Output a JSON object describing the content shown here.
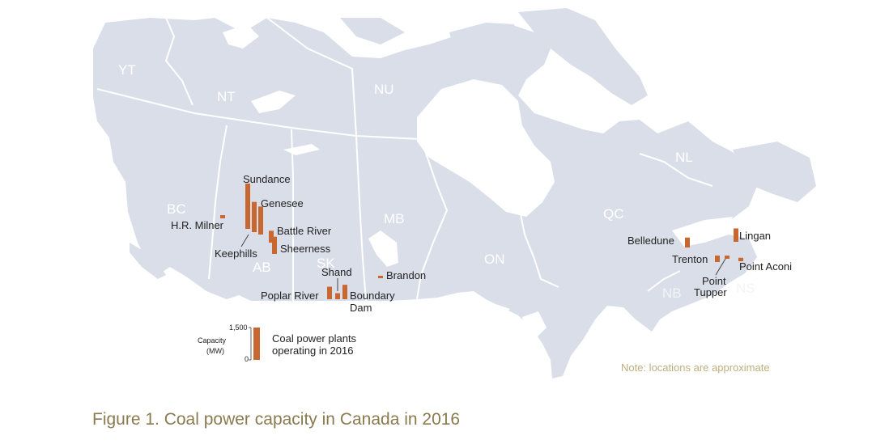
{
  "colors": {
    "land": "#d9dee8",
    "border": "#ffffff",
    "bar": "#c8672f",
    "note": "#bfae7f",
    "caption": "#8a7a4f"
  },
  "provinces": {
    "yt": "YT",
    "nt": "NT",
    "nu": "NU",
    "bc": "BC",
    "ab": "AB",
    "sk": "SK",
    "mb": "MB",
    "on": "ON",
    "qc": "QC",
    "nl": "NL",
    "nb": "NB",
    "ns": "NS"
  },
  "plants": {
    "sundance": "Sundance",
    "genesee": "Genesee",
    "battle_river": "Battle River",
    "sheerness": "Sheerness",
    "keephills": "Keephills",
    "hr_milner": "H.R. Milner",
    "shand": "Shand",
    "poplar_river": "Poplar River",
    "boundary_1": "Boundary",
    "boundary_2": "Dam",
    "brandon": "Brandon",
    "belledune": "Belledune",
    "lingan": "Lingan",
    "trenton": "Trenton",
    "point_aconi": "Point Aconi",
    "point_tupper_1": "Point",
    "point_tupper_2": "Tupper"
  },
  "capacity_mw": {
    "sundance": 2100,
    "keephills": 1400,
    "genesee": 1300,
    "battle_river": 550,
    "sheerness": 800,
    "hr_milner": 150,
    "poplar_river": 580,
    "shand": 280,
    "boundary_dam": 670,
    "brandon": 100,
    "belledune": 460,
    "lingan": 620,
    "trenton": 300,
    "point_tupper": 150,
    "point_aconi": 160
  },
  "legend": {
    "axis_title_1": "Capacity",
    "axis_title_2": "(MW)",
    "tick_max": "1,500",
    "tick_min": "0",
    "label_1": "Coal power plants",
    "label_2": "operating in 2016",
    "max_mw": 1500
  },
  "note": "Note: locations are approximate",
  "caption": "Figure 1. Coal power capacity in Canada in 2016"
}
